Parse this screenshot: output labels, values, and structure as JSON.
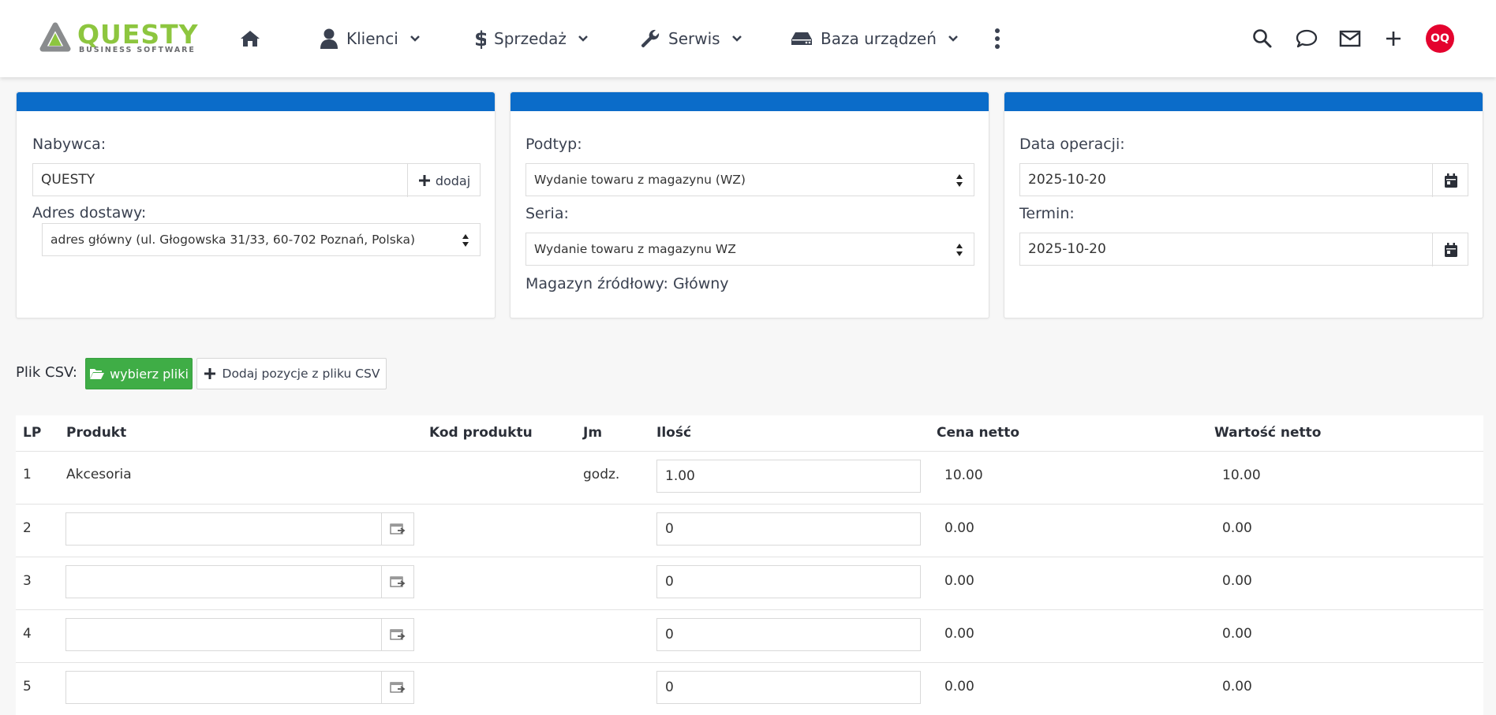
{
  "brand": {
    "name": "QUESTY",
    "tagline": "BUSINESS SOFTWARE",
    "color": "#8dc63f"
  },
  "nav": {
    "home_icon": "home-icon",
    "items": [
      {
        "label": "Klienci",
        "icon": "user-icon"
      },
      {
        "label": "Sprzedaż",
        "icon": "dollar-icon"
      },
      {
        "label": "Serwis",
        "icon": "wrench-icon"
      },
      {
        "label": "Baza urządzeń",
        "icon": "drive-icon"
      }
    ],
    "more_icon": "kebab-menu-icon",
    "right_icons": [
      "search-icon",
      "chat-icon",
      "mail-icon",
      "plus-icon"
    ],
    "avatar_initials": "OQ",
    "avatar_color": "#e4032e"
  },
  "panels": {
    "header_color": "#0b6cc9",
    "buyer": {
      "buyer_label": "Nabywca:",
      "buyer_value": "QUESTY",
      "add_label": "dodaj",
      "address_label": "Adres dostawy:",
      "address_value": "adres główny (ul. Głogowska 31/33, 60-702 Poznań, Polska)"
    },
    "type": {
      "subtype_label": "Podtyp:",
      "subtype_value": "Wydanie towaru z magazynu (WZ)",
      "series_label": "Seria:",
      "series_value": "Wydanie towaru z magazynu WZ",
      "warehouse_text": "Magazyn źródłowy: Główny"
    },
    "dates": {
      "operation_label": "Data operacji:",
      "operation_value": "2025-10-20",
      "term_label": "Termin:",
      "term_value": "2025-10-20"
    }
  },
  "csv": {
    "label": "Plik CSV:",
    "choose_label": "wybierz pliki",
    "add_label": "Dodaj pozycje z pliku CSV",
    "choose_color": "#3fad46"
  },
  "table": {
    "headers": {
      "lp": "LP",
      "product": "Produkt",
      "code": "Kod produktu",
      "unit": "Jm",
      "qty": "Ilość",
      "price": "Cena netto",
      "value": "Wartość netto"
    },
    "rows": [
      {
        "lp": "1",
        "product": "Akcesoria",
        "unit": "godz.",
        "qty": "1.00",
        "price": "10.00",
        "value": "10.00"
      },
      {
        "lp": "2",
        "product": "",
        "unit": "",
        "qty": "0",
        "price": "0.00",
        "value": "0.00"
      },
      {
        "lp": "3",
        "product": "",
        "unit": "",
        "qty": "0",
        "price": "0.00",
        "value": "0.00"
      },
      {
        "lp": "4",
        "product": "",
        "unit": "",
        "qty": "0",
        "price": "0.00",
        "value": "0.00"
      },
      {
        "lp": "5",
        "product": "",
        "unit": "",
        "qty": "0",
        "price": "0.00",
        "value": "0.00"
      }
    ]
  }
}
